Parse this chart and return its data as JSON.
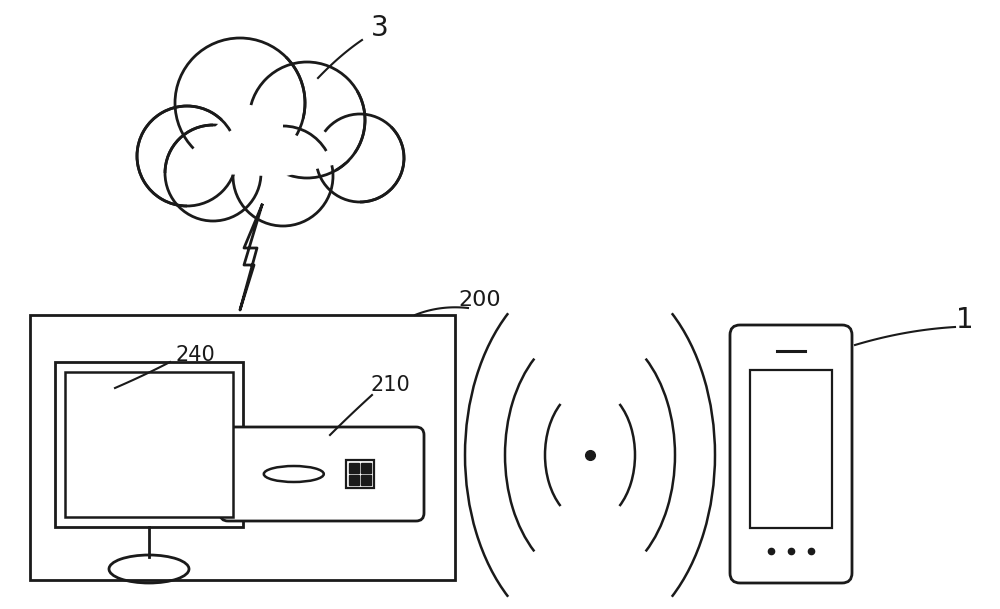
{
  "bg_color": "#ffffff",
  "line_color": "#1a1a1a",
  "label_color": "#1a1a1a",
  "figsize": [
    10.0,
    6.09
  ],
  "dpi": 100
}
